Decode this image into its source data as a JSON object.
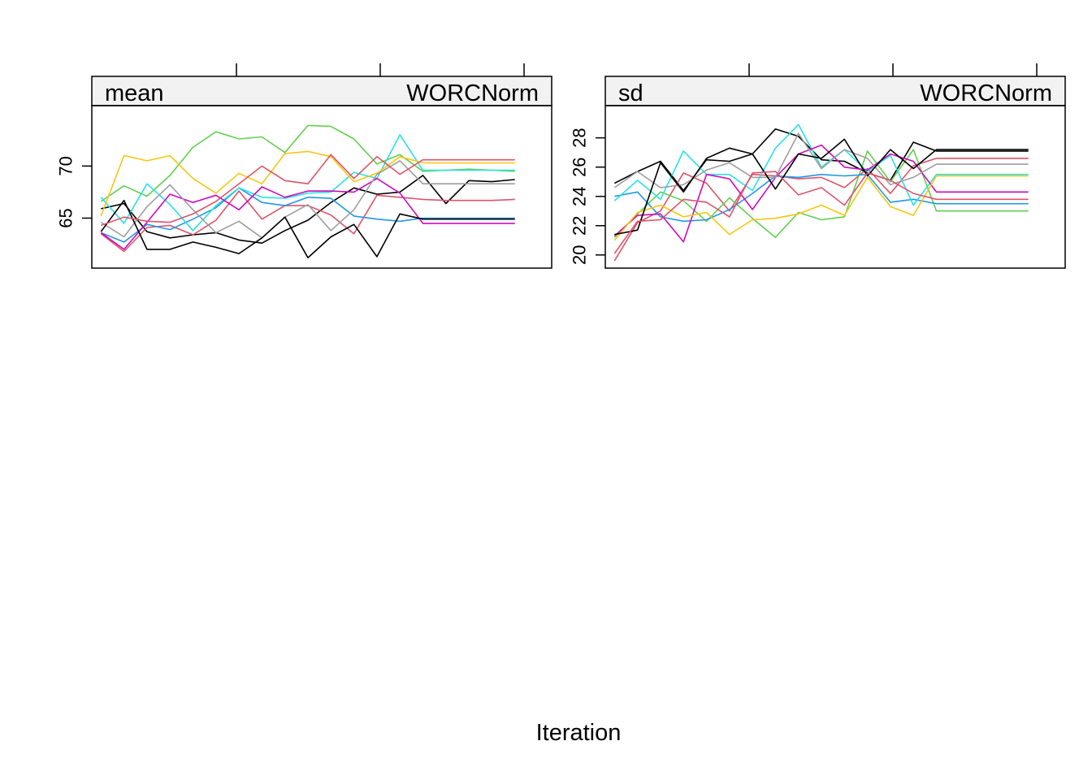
{
  "xlabel": "Iteration",
  "series_colors": [
    "#000000",
    "#DF536B",
    "#61D04F",
    "#2297E6",
    "#28E2E5",
    "#CD0BBC",
    "#F5C710",
    "#9E9E9E",
    "#000000",
    "#DF536B"
  ],
  "chart_data": [
    {
      "type": "line",
      "panel_var": "mean",
      "panel_label": "WORCNorm",
      "xlabel": "Iteration",
      "ylabel": "",
      "yticks": [
        65,
        70
      ],
      "ylim": [
        60.2,
        75.8
      ],
      "xlim": [
        0.6,
        20.6
      ],
      "x": [
        1,
        2,
        3,
        4,
        5,
        6,
        7,
        8,
        9,
        10,
        11,
        12,
        13,
        14,
        15,
        16,
        17,
        18,
        19
      ],
      "grid": false,
      "series": [
        {
          "values": [
            65.9,
            66.4,
            63.7,
            63.1,
            63.4,
            63.6,
            62.9,
            62.6,
            63.8,
            64.8,
            66.5,
            67.9,
            67.3,
            67.5,
            69.1,
            66.4,
            68.6,
            68.5,
            68.7
          ]
        },
        {
          "values": [
            63.5,
            61.8,
            64.1,
            64.3,
            63.4,
            64.8,
            67.6,
            64.9,
            66.2,
            66.2,
            65.3,
            63.5,
            67.2,
            67.0,
            66.8,
            66.7,
            66.7,
            66.7,
            66.8
          ]
        },
        {
          "values": [
            66.6,
            68.1,
            67.1,
            69.1,
            71.8,
            73.3,
            72.6,
            72.8,
            71.3,
            73.9,
            73.8,
            72.6,
            70.2,
            71.1,
            69.5,
            69.6,
            69.7,
            69.6,
            69.5
          ]
        },
        {
          "values": [
            63.6,
            62.7,
            64.4,
            63.9,
            64.9,
            66.0,
            67.9,
            66.5,
            66.2,
            67.0,
            66.9,
            65.2,
            64.9,
            64.7,
            65.0,
            65.0,
            65.0,
            65.0,
            65.0
          ]
        },
        {
          "values": [
            67.0,
            64.5,
            68.3,
            66.3,
            63.8,
            66.2,
            67.9,
            67.0,
            66.9,
            67.4,
            67.5,
            69.4,
            68.8,
            73.0,
            69.6,
            69.6,
            69.6,
            69.6,
            69.6
          ]
        },
        {
          "values": [
            63.6,
            62.0,
            64.6,
            67.3,
            66.5,
            67.2,
            65.8,
            68.0,
            67.0,
            67.6,
            67.6,
            67.5,
            68.8,
            67.4,
            64.5,
            64.5,
            64.5,
            64.5,
            64.5
          ]
        },
        {
          "values": [
            65.2,
            71.0,
            70.5,
            71.0,
            68.8,
            67.4,
            69.3,
            68.3,
            71.2,
            71.4,
            70.9,
            68.5,
            69.3,
            70.9,
            70.3,
            70.3,
            70.3,
            70.3,
            70.3
          ]
        },
        {
          "values": [
            64.6,
            63.2,
            66.1,
            68.2,
            65.8,
            63.6,
            64.7,
            63.1,
            65.1,
            66.3,
            63.8,
            65.8,
            69.2,
            70.5,
            68.3,
            68.3,
            68.3,
            68.3,
            68.3
          ]
        },
        {
          "values": [
            63.7,
            66.7,
            62.0,
            62.0,
            62.7,
            62.2,
            61.6,
            63.1,
            65.1,
            61.2,
            63.2,
            64.4,
            61.3,
            65.4,
            64.9,
            64.9,
            64.9,
            64.9,
            64.9
          ]
        },
        {
          "values": [
            64.3,
            65.1,
            64.7,
            64.6,
            65.4,
            66.6,
            68.3,
            70.0,
            68.6,
            68.3,
            71.1,
            68.8,
            70.9,
            69.2,
            70.6,
            70.6,
            70.6,
            70.6,
            70.6
          ]
        }
      ]
    },
    {
      "type": "line",
      "panel_var": "sd",
      "panel_label": "WORCNorm",
      "xlabel": "Iteration",
      "ylabel": "",
      "yticks": [
        20,
        22,
        24,
        26,
        28
      ],
      "ylim": [
        19.1,
        30.2
      ],
      "xlim": [
        0.6,
        20.6
      ],
      "x": [
        1,
        2,
        3,
        4,
        5,
        6,
        7,
        8,
        9,
        10,
        11,
        12,
        13,
        14,
        15,
        16,
        17,
        18,
        19
      ],
      "grid": false,
      "series": [
        {
          "values": [
            24.9,
            25.7,
            26.4,
            24.4,
            26.5,
            26.4,
            26.9,
            28.6,
            28.1,
            26.5,
            26.4,
            25.6,
            25.1,
            27.7,
            27.1,
            27.1,
            27.1,
            27.1,
            27.1
          ]
        },
        {
          "values": [
            19.6,
            22.2,
            23.0,
            25.6,
            24.9,
            23.0,
            25.5,
            25.4,
            25.2,
            25.3,
            24.6,
            25.9,
            24.2,
            26.1,
            26.6,
            26.6,
            26.6,
            26.6,
            26.6
          ]
        },
        {
          "values": [
            21.2,
            22.8,
            24.3,
            23.7,
            22.3,
            23.9,
            22.5,
            21.2,
            22.9,
            22.4,
            22.6,
            27.1,
            25.0,
            27.2,
            23.0,
            23.0,
            23.0,
            23.0,
            23.0
          ]
        },
        {
          "values": [
            24.0,
            24.3,
            22.6,
            22.3,
            22.4,
            23.1,
            24.2,
            25.4,
            25.3,
            25.5,
            25.4,
            25.5,
            23.6,
            23.8,
            23.5,
            23.5,
            23.5,
            23.5,
            23.5
          ]
        },
        {
          "values": [
            23.7,
            25.1,
            23.8,
            27.1,
            25.5,
            25.5,
            24.4,
            27.3,
            28.9,
            26.0,
            27.2,
            25.7,
            26.8,
            23.4,
            25.5,
            25.5,
            25.5,
            25.5,
            25.5
          ]
        },
        {
          "values": [
            21.3,
            22.7,
            22.8,
            20.9,
            25.5,
            25.2,
            23.1,
            25.3,
            26.9,
            27.5,
            26.0,
            25.8,
            26.9,
            26.4,
            24.3,
            24.3,
            24.3,
            24.3,
            24.3
          ]
        },
        {
          "values": [
            21.0,
            22.9,
            23.4,
            22.6,
            22.9,
            21.4,
            22.4,
            22.5,
            22.8,
            23.4,
            22.7,
            25.3,
            23.3,
            22.7,
            25.4,
            25.4,
            25.4,
            25.4,
            25.4
          ]
        },
        {
          "values": [
            24.6,
            25.7,
            24.6,
            24.8,
            25.8,
            26.3,
            25.3,
            25.3,
            28.3,
            25.9,
            27.2,
            26.6,
            24.8,
            25.3,
            26.2,
            26.2,
            26.2,
            26.2,
            26.2
          ]
        },
        {
          "values": [
            21.4,
            21.7,
            26.3,
            24.3,
            26.6,
            27.3,
            26.9,
            24.5,
            26.9,
            26.6,
            27.9,
            25.4,
            27.2,
            25.9,
            27.2,
            27.2,
            27.2,
            27.2,
            27.2
          ]
        },
        {
          "values": [
            20.1,
            22.3,
            22.4,
            23.8,
            23.6,
            22.6,
            25.6,
            25.7,
            24.1,
            24.6,
            23.4,
            25.6,
            25.1,
            24.2,
            23.8,
            23.8,
            23.8,
            23.8,
            23.8
          ]
        }
      ]
    }
  ]
}
